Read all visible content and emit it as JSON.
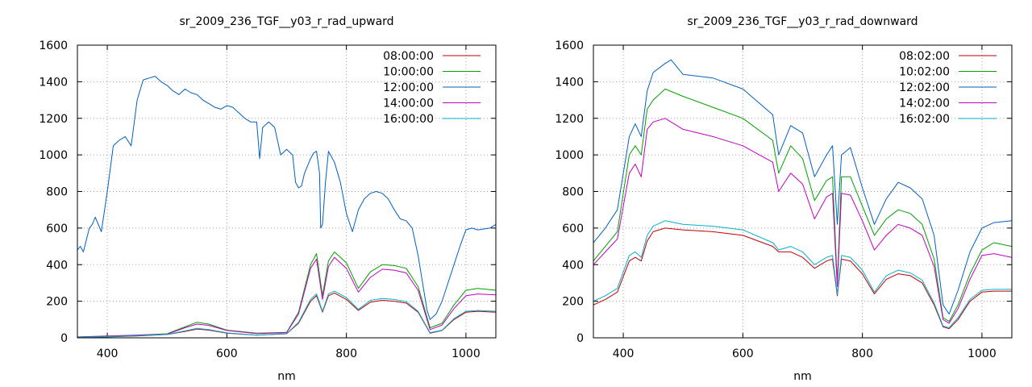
{
  "chart_data": [
    {
      "type": "line",
      "title": "sr_2009_236_TGF__y03_r_rad_upward",
      "xlabel": "nm",
      "ylabel": "",
      "xlim": [
        350,
        1050
      ],
      "ylim": [
        0,
        1600
      ],
      "xticks": [
        400,
        600,
        800,
        1000
      ],
      "yticks": [
        0,
        200,
        400,
        600,
        800,
        1000,
        1200,
        1400,
        1600
      ],
      "grid": true,
      "legend_position": "top-right",
      "series": [
        {
          "name": "08:00:00",
          "color": "#c00000",
          "x": [
            350,
            400,
            450,
            500,
            530,
            550,
            570,
            600,
            650,
            700,
            720,
            740,
            750,
            760,
            770,
            780,
            800,
            820,
            840,
            860,
            880,
            900,
            920,
            940,
            960,
            980,
            1000,
            1020,
            1050
          ],
          "y": [
            2,
            5,
            10,
            18,
            35,
            48,
            42,
            25,
            14,
            22,
            80,
            200,
            230,
            140,
            230,
            245,
            210,
            150,
            195,
            205,
            200,
            190,
            140,
            25,
            40,
            100,
            140,
            145,
            140
          ]
        },
        {
          "name": "10:00:00",
          "color": "#00a000",
          "x": [
            350,
            400,
            450,
            500,
            530,
            550,
            570,
            600,
            650,
            700,
            720,
            740,
            750,
            760,
            770,
            780,
            800,
            820,
            840,
            860,
            880,
            900,
            920,
            940,
            960,
            980,
            1000,
            1020,
            1050
          ],
          "y": [
            5,
            10,
            15,
            22,
            60,
            85,
            75,
            42,
            25,
            30,
            140,
            400,
            460,
            230,
            420,
            470,
            410,
            270,
            360,
            400,
            395,
            380,
            280,
            55,
            80,
            180,
            260,
            270,
            260
          ]
        },
        {
          "name": "12:00:00",
          "color": "#0060c0",
          "x": [
            350,
            355,
            360,
            370,
            375,
            380,
            390,
            400,
            410,
            420,
            430,
            440,
            450,
            460,
            470,
            480,
            490,
            500,
            510,
            520,
            530,
            540,
            550,
            560,
            570,
            580,
            590,
            600,
            610,
            620,
            630,
            640,
            650,
            655,
            660,
            670,
            680,
            690,
            700,
            710,
            715,
            720,
            725,
            730,
            740,
            745,
            750,
            755,
            757,
            760,
            765,
            770,
            780,
            790,
            800,
            810,
            820,
            830,
            840,
            850,
            860,
            870,
            880,
            890,
            900,
            910,
            920,
            930,
            935,
            940,
            950,
            960,
            970,
            980,
            990,
            1000,
            1010,
            1020,
            1030,
            1040,
            1050
          ],
          "y": [
            480,
            500,
            470,
            600,
            620,
            660,
            580,
            800,
            1050,
            1080,
            1100,
            1050,
            1300,
            1410,
            1420,
            1430,
            1400,
            1380,
            1350,
            1330,
            1360,
            1340,
            1330,
            1300,
            1280,
            1260,
            1250,
            1270,
            1260,
            1230,
            1200,
            1180,
            1180,
            980,
            1150,
            1180,
            1150,
            1000,
            1030,
            1000,
            850,
            820,
            830,
            900,
            980,
            1010,
            1020,
            900,
            600,
            620,
            850,
            1020,
            960,
            850,
            680,
            580,
            700,
            760,
            790,
            800,
            790,
            760,
            700,
            650,
            640,
            600,
            450,
            250,
            150,
            100,
            130,
            200,
            300,
            400,
            500,
            590,
            600,
            590,
            595,
            600,
            620
          ]
        },
        {
          "name": "14:00:00",
          "color": "#c000c0",
          "x": [
            350,
            400,
            450,
            500,
            530,
            550,
            570,
            600,
            650,
            700,
            720,
            740,
            750,
            760,
            770,
            780,
            800,
            820,
            840,
            860,
            880,
            900,
            920,
            940,
            960,
            980,
            1000,
            1020,
            1050
          ],
          "y": [
            4,
            9,
            14,
            20,
            55,
            75,
            68,
            40,
            23,
            28,
            130,
            380,
            430,
            210,
            390,
            440,
            380,
            250,
            330,
            375,
            370,
            355,
            260,
            45,
            70,
            160,
            230,
            240,
            235
          ]
        },
        {
          "name": "16:00:00",
          "color": "#00b0d0",
          "x": [
            350,
            400,
            450,
            500,
            530,
            550,
            570,
            600,
            650,
            700,
            720,
            740,
            750,
            760,
            770,
            780,
            800,
            820,
            840,
            860,
            880,
            900,
            920,
            940,
            960,
            980,
            1000,
            1020,
            1050
          ],
          "y": [
            2,
            6,
            11,
            19,
            38,
            52,
            45,
            27,
            15,
            23,
            85,
            210,
            240,
            145,
            240,
            255,
            220,
            155,
            205,
            215,
            210,
            198,
            145,
            28,
            42,
            105,
            145,
            150,
            145
          ]
        }
      ]
    },
    {
      "type": "line",
      "title": "sr_2009_236_TGF__y03_r_rad_downward",
      "xlabel": "nm",
      "ylabel": "",
      "xlim": [
        350,
        1050
      ],
      "ylim": [
        0,
        1600
      ],
      "xticks": [
        400,
        600,
        800,
        1000
      ],
      "yticks": [
        0,
        200,
        400,
        600,
        800,
        1000,
        1200,
        1400,
        1600
      ],
      "grid": true,
      "legend_position": "top-right",
      "series": [
        {
          "name": "08:02:00",
          "color": "#c00000",
          "x": [
            350,
            370,
            390,
            410,
            420,
            430,
            440,
            450,
            470,
            500,
            550,
            600,
            650,
            660,
            680,
            700,
            720,
            740,
            750,
            758,
            765,
            780,
            800,
            820,
            840,
            860,
            880,
            900,
            920,
            935,
            945,
            960,
            980,
            1000,
            1020,
            1050
          ],
          "y": [
            180,
            210,
            250,
            420,
            440,
            420,
            530,
            580,
            600,
            590,
            580,
            560,
            500,
            470,
            470,
            440,
            380,
            420,
            430,
            230,
            430,
            420,
            350,
            240,
            320,
            350,
            340,
            300,
            180,
            60,
            50,
            100,
            200,
            250,
            255,
            255
          ]
        },
        {
          "name": "10:02:00",
          "color": "#00a000",
          "x": [
            350,
            370,
            390,
            410,
            420,
            430,
            440,
            450,
            470,
            500,
            550,
            600,
            650,
            660,
            680,
            700,
            720,
            740,
            750,
            758,
            765,
            780,
            800,
            820,
            840,
            860,
            880,
            900,
            920,
            935,
            945,
            960,
            980,
            1000,
            1020,
            1050
          ],
          "y": [
            420,
            500,
            580,
            1000,
            1050,
            1000,
            1250,
            1300,
            1360,
            1320,
            1260,
            1200,
            1080,
            900,
            1050,
            980,
            750,
            860,
            880,
            300,
            880,
            880,
            720,
            560,
            650,
            700,
            680,
            620,
            430,
            110,
            90,
            180,
            350,
            480,
            520,
            500
          ]
        },
        {
          "name": "12:02:00",
          "color": "#0060c0",
          "x": [
            350,
            370,
            390,
            410,
            420,
            430,
            440,
            450,
            470,
            480,
            500,
            550,
            600,
            650,
            660,
            680,
            700,
            720,
            740,
            750,
            758,
            765,
            780,
            800,
            820,
            840,
            860,
            880,
            900,
            920,
            935,
            945,
            960,
            980,
            1000,
            1020,
            1050
          ],
          "y": [
            520,
            600,
            700,
            1100,
            1170,
            1100,
            1350,
            1450,
            1500,
            1520,
            1440,
            1420,
            1360,
            1220,
            1000,
            1160,
            1120,
            880,
            1000,
            1050,
            620,
            1000,
            1040,
            820,
            620,
            760,
            850,
            820,
            760,
            560,
            180,
            130,
            260,
            470,
            600,
            630,
            640
          ]
        },
        {
          "name": "14:02:00",
          "color": "#c000c0",
          "x": [
            350,
            370,
            390,
            410,
            420,
            430,
            440,
            450,
            470,
            500,
            550,
            600,
            650,
            660,
            680,
            700,
            720,
            740,
            750,
            758,
            765,
            780,
            800,
            820,
            840,
            860,
            880,
            900,
            920,
            935,
            945,
            960,
            980,
            1000,
            1020,
            1050
          ],
          "y": [
            400,
            470,
            540,
            900,
            950,
            880,
            1140,
            1180,
            1200,
            1140,
            1100,
            1050,
            960,
            800,
            900,
            840,
            650,
            770,
            790,
            280,
            790,
            780,
            640,
            480,
            560,
            620,
            600,
            560,
            390,
            100,
            80,
            160,
            320,
            450,
            460,
            440
          ]
        },
        {
          "name": "16:02:00",
          "color": "#00b0d0",
          "x": [
            350,
            370,
            390,
            410,
            420,
            430,
            440,
            450,
            470,
            500,
            550,
            600,
            650,
            660,
            680,
            700,
            720,
            740,
            750,
            758,
            765,
            780,
            800,
            820,
            840,
            860,
            880,
            900,
            920,
            935,
            945,
            960,
            980,
            1000,
            1020,
            1050
          ],
          "y": [
            200,
            230,
            270,
            450,
            470,
            440,
            560,
            610,
            640,
            620,
            610,
            590,
            520,
            480,
            500,
            470,
            400,
            440,
            450,
            240,
            450,
            440,
            370,
            250,
            340,
            370,
            355,
            315,
            190,
            65,
            55,
            110,
            210,
            260,
            265,
            265
          ]
        }
      ]
    }
  ]
}
